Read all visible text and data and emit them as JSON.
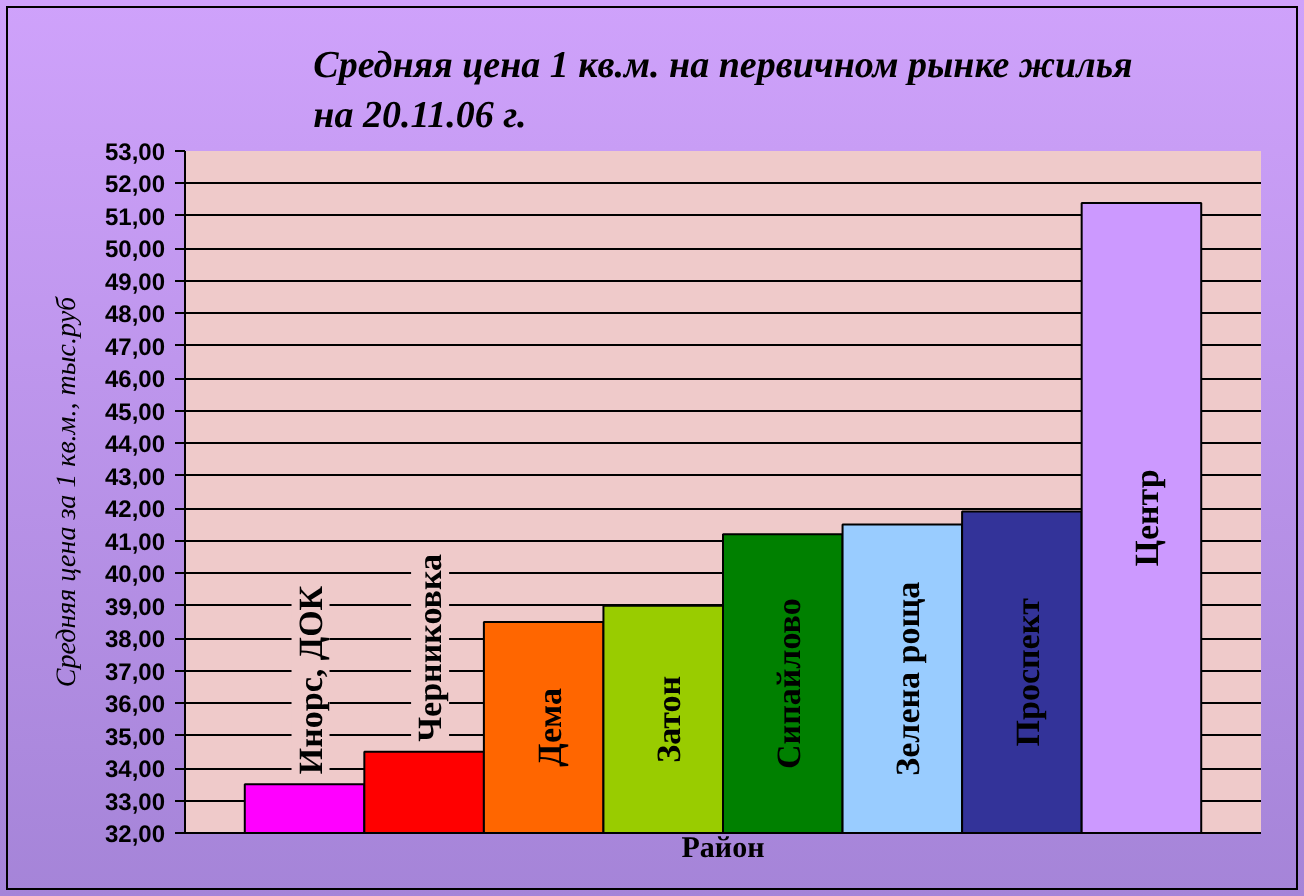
{
  "chart_data": {
    "type": "bar",
    "title": "Средняя цена 1 кв.м. на первичном рынке жилья на 20.11.06 г.",
    "xlabel": "Район",
    "ylabel": "Средняя цена за 1 кв.м., тыс.руб",
    "categories": [
      "Инорс, ДОК",
      "Черниковка",
      "Дема",
      "Затон",
      "Сипайлово",
      "Зелена роща",
      "Проспект",
      "Центр"
    ],
    "values": [
      33.5,
      34.5,
      38.5,
      39.0,
      41.2,
      41.5,
      41.9,
      51.4
    ],
    "colors": [
      "#ff00ff",
      "#ff0000",
      "#ff6600",
      "#99cc00",
      "#008000",
      "#99ccff",
      "#333399",
      "#cc99ff"
    ],
    "ylim": [
      32,
      53
    ],
    "yticks": [
      {
        "value": 32,
        "label": "32,00"
      },
      {
        "value": 33,
        "label": "33,00"
      },
      {
        "value": 34,
        "label": "34,00"
      },
      {
        "value": 35,
        "label": "35,00"
      },
      {
        "value": 36,
        "label": "36,00"
      },
      {
        "value": 37,
        "label": "37,00"
      },
      {
        "value": 38,
        "label": "38,00"
      },
      {
        "value": 39,
        "label": "39,00"
      },
      {
        "value": 40,
        "label": "40,00"
      },
      {
        "value": 41,
        "label": "41,00"
      },
      {
        "value": 42,
        "label": "42,00"
      },
      {
        "value": 43,
        "label": "43,00"
      },
      {
        "value": 44,
        "label": "44,00"
      },
      {
        "value": 45,
        "label": "45,00"
      },
      {
        "value": 46,
        "label": "46,00"
      },
      {
        "value": 47,
        "label": "47,00"
      },
      {
        "value": 48,
        "label": "48,00"
      },
      {
        "value": 49,
        "label": "49,00"
      },
      {
        "value": 50,
        "label": "50,00"
      },
      {
        "value": 51,
        "label": "51,00"
      },
      {
        "value": 52,
        "label": "52,00"
      },
      {
        "value": 53,
        "label": "53,00"
      }
    ],
    "grid": "y",
    "legend": false
  }
}
